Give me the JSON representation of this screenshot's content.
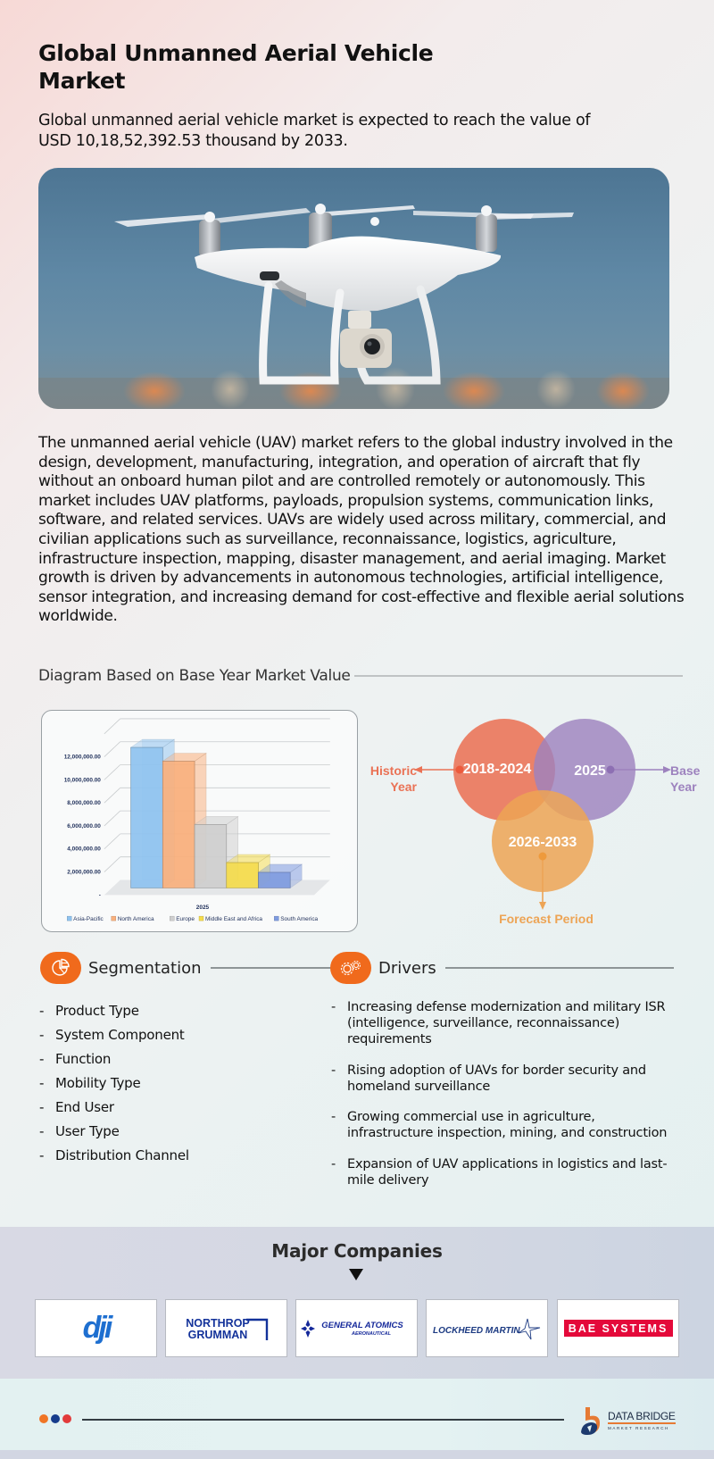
{
  "header": {
    "title": "Global Unmanned Aerial Vehicle Market",
    "subtitle": "Global unmanned aerial vehicle market is expected to reach the value of USD 10,18,52,392.53 thousand by 2033."
  },
  "hero_image": {
    "alt": "White quadcopter drone with gimbal camera flying against blue sky",
    "icon": "drone-photo"
  },
  "description": "The unmanned aerial vehicle (UAV) market refers to the global industry involved in the design, development, manufacturing, integration, and operation of aircraft that fly without an onboard human pilot and are controlled remotely or autonomously. This market includes UAV platforms, payloads, propulsion systems, communication links, software, and related services. UAVs are widely used across military, commercial, and civilian applications such as surveillance, reconnaissance, logistics, agriculture, infrastructure inspection, mapping, disaster management, and aerial imaging. Market growth is driven by advancements in autonomous technologies, artificial intelligence, sensor integration, and increasing demand for cost-effective and flexible aerial solutions worldwide.",
  "diagram_section": {
    "title": "Diagram Based on Base Year Market Value"
  },
  "chart_data": {
    "type": "bar",
    "title": "",
    "xlabel": "",
    "ylabel": "",
    "categories": [
      "2025"
    ],
    "series": [
      {
        "name": "Asia-Pacific",
        "values": [
          12200000
        ],
        "color": "#8fc3f0"
      },
      {
        "name": "North America",
        "values": [
          11000000
        ],
        "color": "#f9b07d"
      },
      {
        "name": "Europe",
        "values": [
          5500000
        ],
        "color": "#cfcfcf"
      },
      {
        "name": "Middle East and Africa",
        "values": [
          2200000
        ],
        "color": "#f5dc4c"
      },
      {
        "name": "South America",
        "values": [
          1350000
        ],
        "color": "#7e9be0"
      }
    ],
    "y_ticks": [
      "-",
      "2,000,000.00",
      "4,000,000.00",
      "6,000,000.00",
      "8,000,000.00",
      "10,000,000.00",
      "12,000,000.00"
    ],
    "ylim": [
      0,
      14000000
    ],
    "grid": true,
    "legend_position": "bottom",
    "style": "3d-clustered-column"
  },
  "venn": {
    "historic": {
      "range": "2018-2024",
      "label_line1": "Historic",
      "label_line2": "Year",
      "color": "#ea7255"
    },
    "base": {
      "range": "2025",
      "label_line1": "Base",
      "label_line2": "Year",
      "color": "#9d82be"
    },
    "forecast": {
      "range": "2026-2033",
      "label": "Forecast Period",
      "color": "#eda455"
    }
  },
  "segmentation": {
    "title": "Segmentation",
    "icon": "pie-chart-icon",
    "items": [
      "Product Type",
      "System Component",
      "Function",
      "Mobility Type",
      "End User",
      "User Type",
      "Distribution Channel"
    ]
  },
  "drivers": {
    "title": "Drivers",
    "icon": "gears-icon",
    "items": [
      "Increasing defense modernization and military ISR (intelligence, surveillance, reconnaissance) requirements",
      "Rising adoption of UAVs for border security and homeland surveillance",
      "Growing commercial use in agriculture, infrastructure inspection, mining, and construction",
      "Expansion of UAV applications in logistics and last-mile delivery"
    ]
  },
  "companies": {
    "title": "Major Companies",
    "items": [
      {
        "name": "dji",
        "color": "#1e6fd0"
      },
      {
        "name": "NORTHROP GRUMMAN",
        "line1": "NORTHROP",
        "line2": "GRUMMAN",
        "color": "#13329a"
      },
      {
        "name": "GENERAL ATOMICS AERONAUTICAL",
        "line1": "GENERAL ATOMICS",
        "line2": "AERONAUTICAL",
        "color": "#14289a"
      },
      {
        "name": "LOCKHEED MARTIN",
        "color": "#1c3a82"
      },
      {
        "name": "BAE SYSTEMS",
        "color": "#e4093a"
      }
    ]
  },
  "footer": {
    "dot_colors": [
      "#f07525",
      "#163c8c",
      "#e23b3b"
    ],
    "brand_name": "DATA BRIDGE",
    "brand_sub": "MARKET RESEARCH"
  }
}
